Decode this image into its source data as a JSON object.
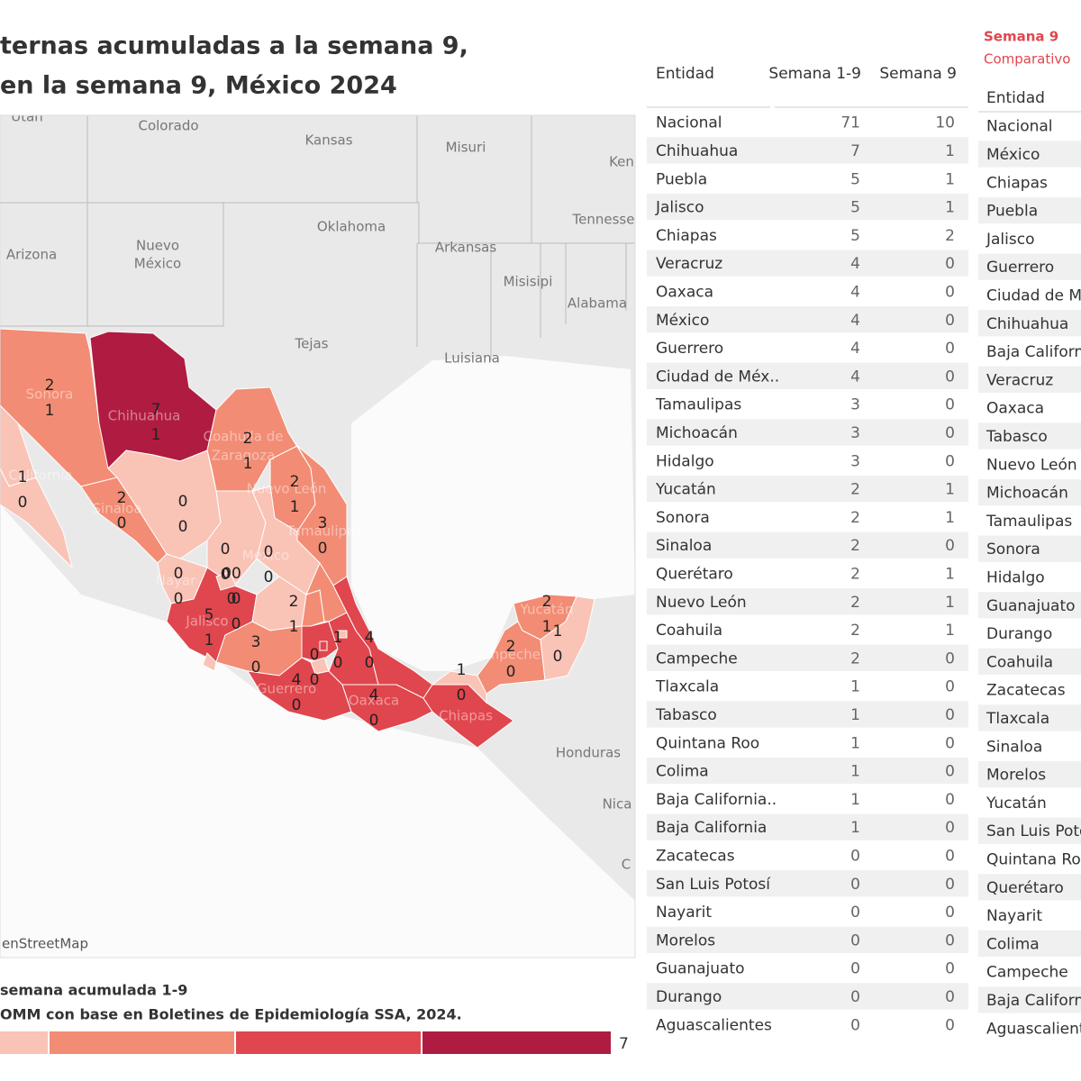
{
  "header": {
    "title_lines": [
      "ternas acumuladas a la semana 9,",
      "en la semana 9, México 2024"
    ]
  },
  "map": {
    "place_names": [
      "Utah",
      "Colorado",
      "Kansas",
      "Misuri",
      "Ken",
      "Oklahoma",
      "Tennesse",
      "Arizona",
      "Nuevo",
      "México",
      "Arkansas",
      "Misisipi",
      "Alabama",
      "Tejas",
      "Luisiana",
      "Sonora",
      "Chihuahua",
      "Coahuila de",
      "Zaragoza",
      "Nuevo León",
      "Tamaulipas",
      "California",
      "Sinaloa",
      "México",
      "Nayar",
      "Jalisco",
      "Guerrero",
      "Oaxaca",
      "Chiapas",
      "Campeche",
      "Yucatán",
      "Honduras",
      "Nica",
      "C"
    ],
    "labels": [
      [
        2,
        1
      ],
      [
        7,
        1
      ],
      [
        1,
        0
      ],
      [
        2,
        1
      ],
      [
        2,
        1
      ],
      [
        3,
        0
      ],
      [
        2,
        0
      ],
      [
        0,
        0
      ],
      [
        0,
        0
      ],
      [
        "00",
        0
      ],
      [
        0,
        0
      ],
      [
        0,
        0
      ],
      [
        0,
        0
      ],
      [
        5,
        1
      ],
      [
        2,
        1
      ],
      [
        3,
        0
      ],
      [
        0,
        0
      ],
      [
        1,
        0
      ],
      [
        4,
        0
      ],
      [
        4,
        0
      ],
      [
        4,
        0
      ],
      [
        2,
        0
      ],
      [
        2,
        1
      ],
      [
        1,
        0
      ],
      [
        1,
        0
      ]
    ],
    "attribution": "enStreetMap"
  },
  "legend": {
    "title": "semana acumulada 1-9",
    "source": "OMM con base en Boletines de Epidemiología SSA, 2024.",
    "max": "7",
    "colors": [
      "#f9c3b6",
      "#f28c74",
      "#e0464d",
      "#b01c41"
    ]
  },
  "table1": {
    "headers": [
      "Entidad",
      "Semana 1-9",
      "Semana 9"
    ],
    "rows": [
      [
        "Nacional",
        71,
        10
      ],
      [
        "Chihuahua",
        7,
        1
      ],
      [
        "Puebla",
        5,
        1
      ],
      [
        "Jalisco",
        5,
        1
      ],
      [
        "Chiapas",
        5,
        2
      ],
      [
        "Veracruz",
        4,
        0
      ],
      [
        "Oaxaca",
        4,
        0
      ],
      [
        "México",
        4,
        0
      ],
      [
        "Guerrero",
        4,
        0
      ],
      [
        "Ciudad de Méx..",
        4,
        0
      ],
      [
        "Tamaulipas",
        3,
        0
      ],
      [
        "Michoacán",
        3,
        0
      ],
      [
        "Hidalgo",
        3,
        0
      ],
      [
        "Yucatán",
        2,
        1
      ],
      [
        "Sonora",
        2,
        1
      ],
      [
        "Sinaloa",
        2,
        0
      ],
      [
        "Querétaro",
        2,
        1
      ],
      [
        "Nuevo León",
        2,
        1
      ],
      [
        "Coahuila",
        2,
        1
      ],
      [
        "Campeche",
        2,
        0
      ],
      [
        "Tlaxcala",
        1,
        0
      ],
      [
        "Tabasco",
        1,
        0
      ],
      [
        "Quintana Roo",
        1,
        0
      ],
      [
        "Colima",
        1,
        0
      ],
      [
        "Baja California..",
        1,
        0
      ],
      [
        "Baja California",
        1,
        0
      ],
      [
        "Zacatecas",
        0,
        0
      ],
      [
        "San Luis Potosí",
        0,
        0
      ],
      [
        "Nayarit",
        0,
        0
      ],
      [
        "Morelos",
        0,
        0
      ],
      [
        "Guanajuato",
        0,
        0
      ],
      [
        "Durango",
        0,
        0
      ],
      [
        "Aguascalientes",
        0,
        0
      ]
    ]
  },
  "table2": {
    "title": "Semana 9",
    "subtitle": "Comparativo",
    "header": "Entidad",
    "rows": [
      "Nacional",
      "México",
      "Chiapas",
      "Puebla",
      "Jalisco",
      "Guerrero",
      "Ciudad de Mé",
      "Chihuahua",
      "Baja Californ",
      "Veracruz",
      "Oaxaca",
      "Tabasco",
      "Nuevo León",
      "Michoacán",
      "Tamaulipas",
      "Sonora",
      "Hidalgo",
      "Guanajuato",
      "Durango",
      "Coahuila",
      "Zacatecas",
      "Tlaxcala",
      "Sinaloa",
      "Morelos",
      "Yucatán",
      "San Luis Poto",
      "Quintana Roo",
      "Querétaro",
      "Nayarit",
      "Colima",
      "Campeche",
      "Baja Californ",
      "Aguascalient"
    ]
  }
}
